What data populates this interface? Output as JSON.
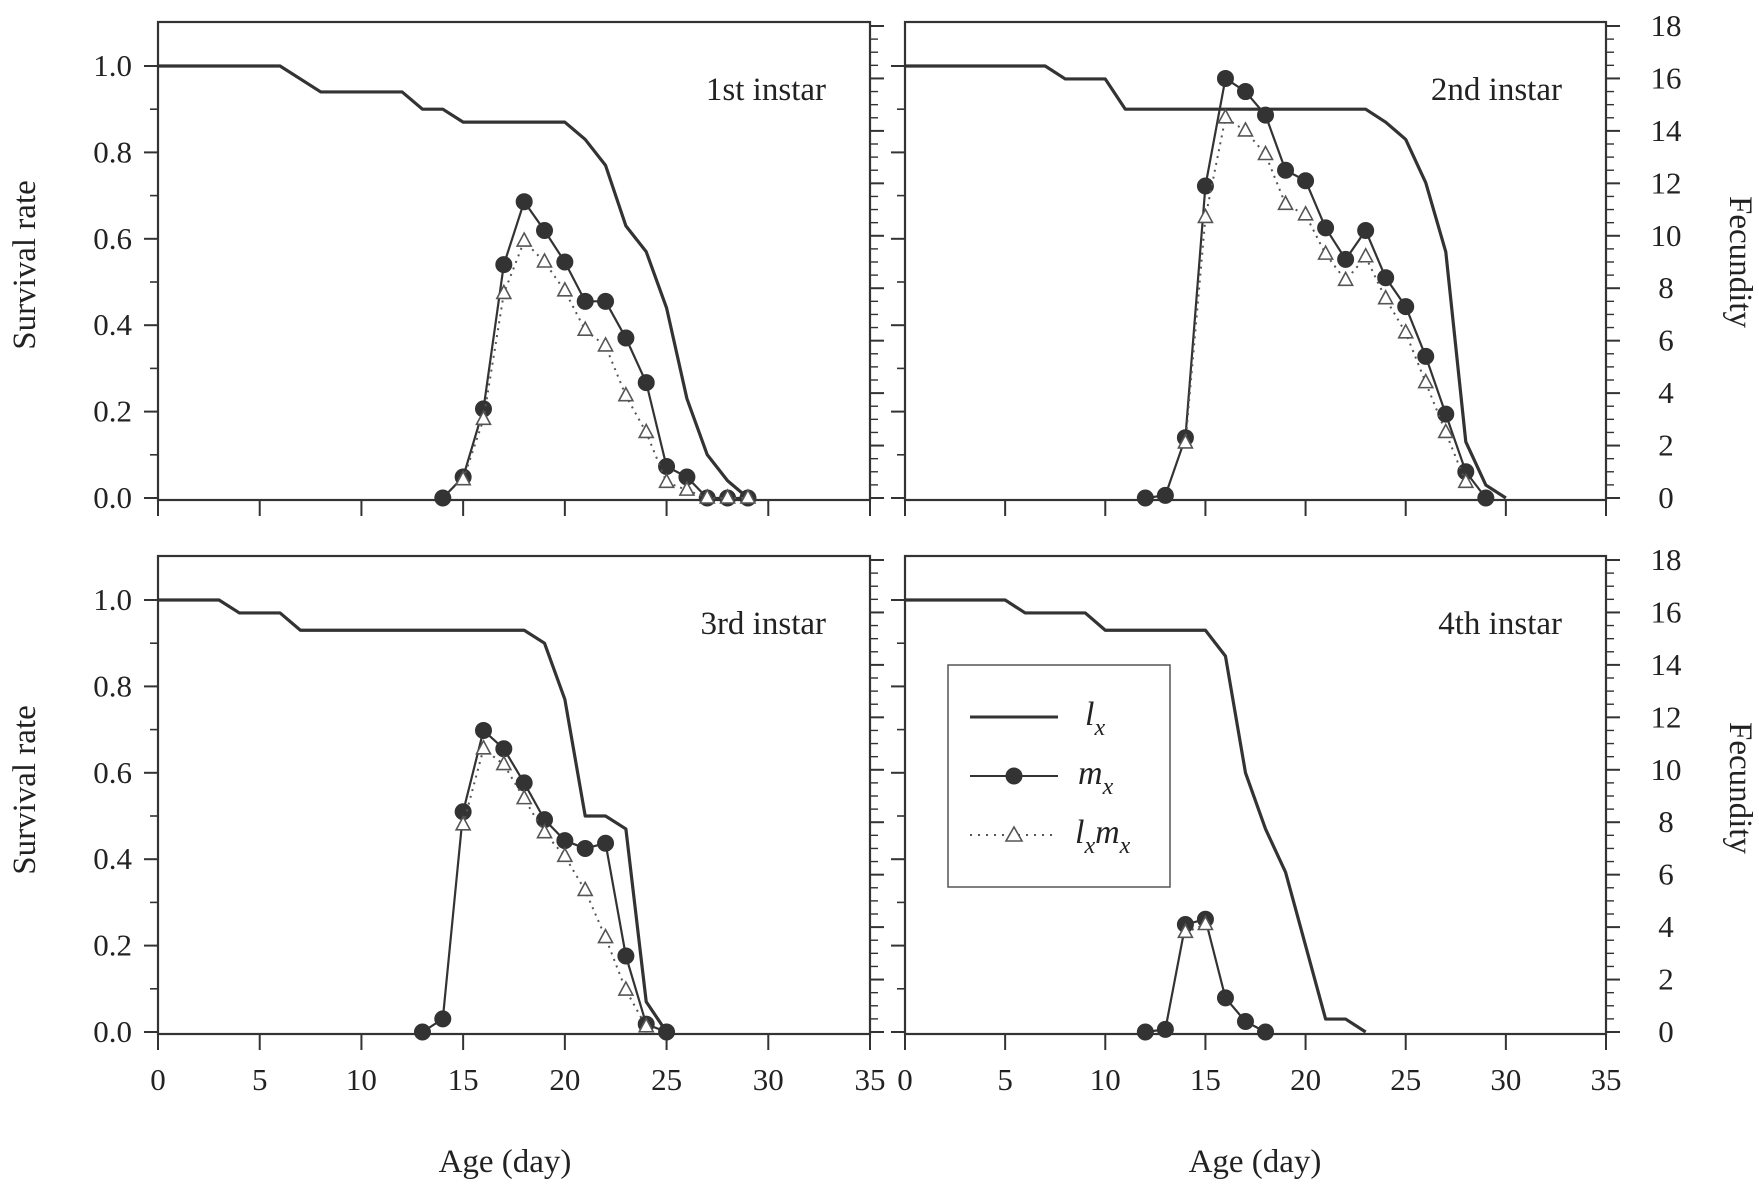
{
  "figure": {
    "left_axis_label": "Survival rate",
    "right_axis_label": "Fecundity",
    "x_axis_label": "Age (day)"
  },
  "legend": {
    "lx": {
      "main": "l",
      "sub": "x"
    },
    "mx": {
      "main": "m",
      "sub": "x"
    },
    "lxmx": {
      "main1": "l",
      "sub1": "x",
      "main2": "m",
      "sub2": "x"
    }
  },
  "colors": {
    "axis": "#333333",
    "line": "#333333",
    "marker_fill": "#333333",
    "triangle_stroke": "#555555"
  },
  "chart_data": [
    {
      "type": "line",
      "title": "1st instar",
      "xlabel": "Age (day)",
      "ylabel": "Survival rate",
      "y2label": "Fecundity",
      "xlim": [
        0,
        35
      ],
      "ylim": [
        0,
        1.1
      ],
      "y2lim": [
        0,
        18
      ],
      "x_ticks": [
        "0",
        "5",
        "10",
        "15",
        "20",
        "25",
        "30",
        "35"
      ],
      "y_ticks": [
        "0.0",
        "0.2",
        "0.4",
        "0.6",
        "0.8",
        "1.0"
      ],
      "y2_ticks": [],
      "series": [
        {
          "name": "lx",
          "axis": "left",
          "x": [
            0,
            6,
            8,
            12,
            13,
            14,
            15,
            20,
            21,
            22,
            23,
            24,
            25,
            26,
            27,
            28,
            29
          ],
          "y": [
            1.0,
            1.0,
            0.94,
            0.94,
            0.9,
            0.9,
            0.87,
            0.87,
            0.83,
            0.77,
            0.63,
            0.57,
            0.44,
            0.23,
            0.1,
            0.04,
            0.0
          ]
        },
        {
          "name": "mx",
          "axis": "right",
          "x": [
            14,
            15,
            16,
            17,
            18,
            19,
            20,
            21,
            22,
            23,
            24,
            25,
            26,
            27,
            28,
            29
          ],
          "y": [
            0.0,
            0.8,
            3.4,
            8.9,
            11.3,
            10.2,
            9.0,
            7.5,
            7.5,
            6.1,
            4.4,
            1.2,
            0.8,
            0.0,
            0.0,
            0.0
          ]
        },
        {
          "name": "lxmx",
          "axis": "right",
          "x": [
            15,
            16,
            17,
            18,
            19,
            20,
            21,
            22,
            23,
            24,
            25,
            26,
            27,
            28,
            29
          ],
          "y": [
            0.7,
            3.0,
            7.8,
            9.8,
            9.0,
            7.9,
            6.4,
            5.8,
            3.9,
            2.5,
            0.6,
            0.3,
            0.0,
            0.0,
            0.0
          ]
        }
      ]
    },
    {
      "type": "line",
      "title": "2nd instar",
      "xlabel": "Age (day)",
      "ylabel": "Survival rate",
      "y2label": "Fecundity",
      "xlim": [
        0,
        35
      ],
      "ylim": [
        0,
        1.1
      ],
      "y2lim": [
        0,
        18
      ],
      "x_ticks": [
        "0",
        "5",
        "10",
        "15",
        "20",
        "25",
        "30",
        "35"
      ],
      "y_ticks": [],
      "y2_ticks": [
        "0",
        "2",
        "4",
        "6",
        "8",
        "10",
        "12",
        "14",
        "16",
        "18"
      ],
      "series": [
        {
          "name": "lx",
          "axis": "left",
          "x": [
            0,
            7,
            8,
            10,
            11,
            23,
            24,
            25,
            26,
            27,
            28,
            29,
            30
          ],
          "y": [
            1.0,
            1.0,
            0.97,
            0.97,
            0.9,
            0.9,
            0.87,
            0.83,
            0.73,
            0.57,
            0.13,
            0.03,
            0.0
          ]
        },
        {
          "name": "mx",
          "axis": "right",
          "x": [
            12,
            13,
            14,
            15,
            16,
            17,
            18,
            19,
            20,
            21,
            22,
            23,
            24,
            25,
            26,
            27,
            28,
            29
          ],
          "y": [
            0.0,
            0.1,
            2.3,
            11.9,
            16.0,
            15.5,
            14.6,
            12.5,
            12.1,
            10.3,
            9.1,
            10.2,
            8.4,
            7.3,
            5.4,
            3.2,
            1.0,
            0.0
          ]
        },
        {
          "name": "lxmx",
          "axis": "right",
          "x": [
            14,
            15,
            16,
            17,
            18,
            19,
            20,
            21,
            22,
            23,
            24,
            25,
            26,
            27,
            28
          ],
          "y": [
            2.1,
            10.7,
            14.5,
            14.0,
            13.1,
            11.2,
            10.8,
            9.3,
            8.3,
            9.2,
            7.6,
            6.3,
            4.4,
            2.5,
            0.6
          ]
        }
      ]
    },
    {
      "type": "line",
      "title": "3rd instar",
      "xlabel": "Age (day)",
      "ylabel": "Survival rate",
      "y2label": "Fecundity",
      "xlim": [
        0,
        35
      ],
      "ylim": [
        0,
        1.1
      ],
      "y2lim": [
        0,
        18
      ],
      "x_ticks": [
        "0",
        "5",
        "10",
        "15",
        "20",
        "25",
        "30",
        "35"
      ],
      "y_ticks": [
        "0.0",
        "0.2",
        "0.4",
        "0.6",
        "0.8",
        "1.0"
      ],
      "y2_ticks": [],
      "series": [
        {
          "name": "lx",
          "axis": "left",
          "x": [
            0,
            3,
            4,
            6,
            7,
            18,
            19,
            20,
            21,
            22,
            23,
            24,
            25
          ],
          "y": [
            1.0,
            1.0,
            0.97,
            0.97,
            0.93,
            0.93,
            0.9,
            0.77,
            0.5,
            0.5,
            0.47,
            0.07,
            0.0
          ]
        },
        {
          "name": "mx",
          "axis": "right",
          "x": [
            13,
            14,
            15,
            16,
            17,
            18,
            19,
            20,
            21,
            22,
            23,
            24,
            25
          ],
          "y": [
            0.0,
            0.5,
            8.4,
            11.5,
            10.8,
            9.5,
            8.1,
            7.3,
            7.0,
            7.2,
            2.9,
            0.3,
            0.0
          ]
        },
        {
          "name": "lxmx",
          "axis": "right",
          "x": [
            15,
            16,
            17,
            18,
            19,
            20,
            21,
            22,
            23,
            24
          ],
          "y": [
            7.9,
            10.8,
            10.2,
            8.9,
            7.6,
            6.7,
            5.4,
            3.6,
            1.6,
            0.2
          ]
        }
      ]
    },
    {
      "type": "line",
      "title": "4th instar",
      "xlabel": "Age (day)",
      "ylabel": "Survival rate",
      "y2label": "Fecundity",
      "xlim": [
        0,
        35
      ],
      "ylim": [
        0,
        1.1
      ],
      "y2lim": [
        0,
        18
      ],
      "x_ticks": [
        "0",
        "5",
        "10",
        "15",
        "20",
        "25",
        "30",
        "35"
      ],
      "y_ticks": [],
      "y2_ticks": [
        "0",
        "2",
        "4",
        "6",
        "8",
        "10",
        "12",
        "14",
        "16",
        "18"
      ],
      "series": [
        {
          "name": "lx",
          "axis": "left",
          "x": [
            0,
            5,
            6,
            9,
            10,
            15,
            16,
            17,
            18,
            19,
            20,
            21,
            22,
            23
          ],
          "y": [
            1.0,
            1.0,
            0.97,
            0.97,
            0.93,
            0.93,
            0.87,
            0.6,
            0.47,
            0.37,
            0.2,
            0.03,
            0.03,
            0.0
          ]
        },
        {
          "name": "mx",
          "axis": "right",
          "x": [
            12,
            13,
            14,
            15,
            16,
            17,
            18
          ],
          "y": [
            0.0,
            0.1,
            4.1,
            4.3,
            1.3,
            0.4,
            0.0
          ]
        },
        {
          "name": "lxmx",
          "axis": "right",
          "x": [
            14,
            15
          ],
          "y": [
            3.8,
            4.1
          ]
        }
      ]
    }
  ]
}
